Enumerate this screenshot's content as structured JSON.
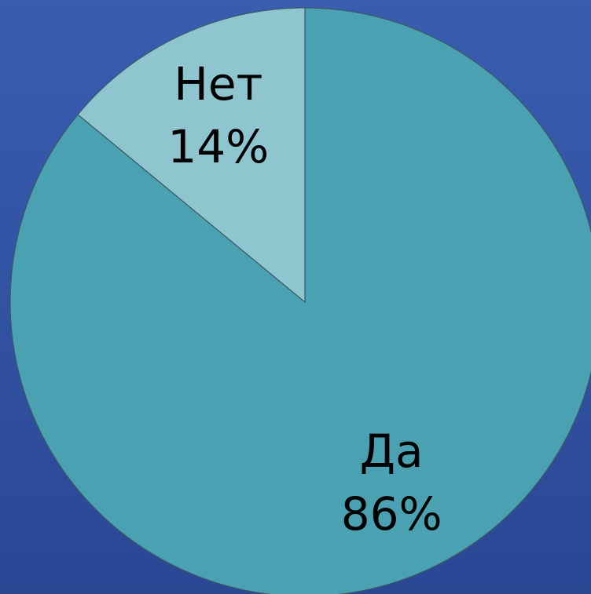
{
  "chart_data": {
    "type": "pie",
    "categories": [
      "Да",
      "Нет"
    ],
    "values": [
      86,
      14
    ],
    "value_labels": [
      "86%",
      "14%"
    ],
    "colors": [
      "#4aa1b1",
      "#8ec5cf"
    ]
  }
}
